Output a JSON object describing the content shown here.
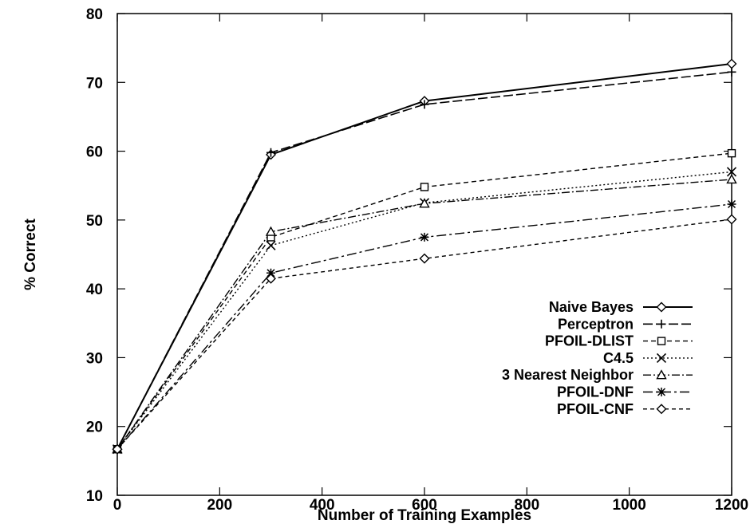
{
  "chart_data": {
    "type": "line",
    "title": "",
    "xlabel": "Number of Training Examples",
    "ylabel": "% Correct",
    "xlim": [
      0,
      1200
    ],
    "ylim": [
      10,
      80
    ],
    "x_ticks": [
      0,
      200,
      400,
      600,
      800,
      1000,
      1200
    ],
    "y_ticks": [
      10,
      20,
      30,
      40,
      50,
      60,
      70,
      80
    ],
    "x_tick_labels": [
      "0",
      "200",
      "400",
      "600",
      "800",
      "1000",
      "1200"
    ],
    "y_tick_labels": [
      "10",
      "20",
      "30",
      "40",
      "50",
      "60",
      "70",
      "80"
    ],
    "grid": false,
    "legend_position": "lower-right",
    "x": [
      0,
      300,
      600,
      1200
    ],
    "series": [
      {
        "name": "Naive Bayes",
        "values": [
          16.7,
          59.5,
          67.3,
          72.7
        ],
        "marker": "diamond",
        "dash": "solid"
      },
      {
        "name": "Perceptron",
        "values": [
          16.7,
          59.8,
          66.8,
          71.5
        ],
        "marker": "plus",
        "dash": "long-dash"
      },
      {
        "name": "PFOIL-DLIST",
        "values": [
          16.7,
          47.5,
          54.8,
          59.7
        ],
        "marker": "square",
        "dash": "dash"
      },
      {
        "name": "C4.5",
        "values": [
          16.7,
          46.3,
          52.5,
          57.0
        ],
        "marker": "x",
        "dash": "dot"
      },
      {
        "name": "3 Nearest Neighbor",
        "values": [
          16.7,
          48.3,
          52.4,
          55.9
        ],
        "marker": "triangle",
        "dash": "dash-dot"
      },
      {
        "name": "PFOIL-DNF",
        "values": [
          16.7,
          42.3,
          47.5,
          52.3
        ],
        "marker": "star",
        "dash": "dash-dot-long"
      },
      {
        "name": "PFOIL-CNF",
        "values": [
          16.7,
          41.5,
          44.4,
          50.1
        ],
        "marker": "diamond",
        "dash": "short-dash"
      }
    ]
  }
}
